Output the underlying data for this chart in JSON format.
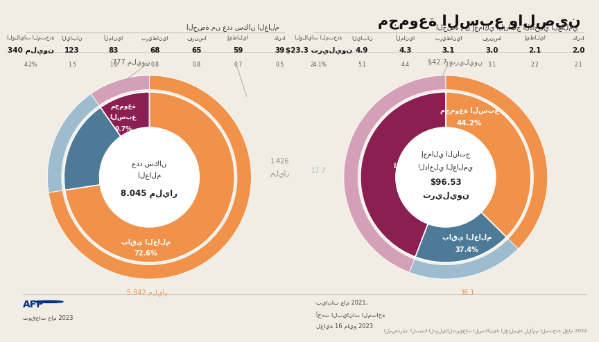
{
  "title": "مجموعة السبع والصين",
  "subtitle_left": "الحصة من عدد سكان العالم",
  "subtitle_right": "الحصة من إجمالي الناتج الداخلي العالمي",
  "background_color": "#F2EDE4",
  "pop_segments_inner": [
    72.6,
    17.7,
    9.7
  ],
  "pop_segments_inner_colors": [
    "#F0924A",
    "#4D7A96",
    "#8B1F52"
  ],
  "pop_segments_outer": [
    72.6,
    17.7,
    9.7
  ],
  "pop_segments_outer_colors": [
    "#F0924A",
    "#9DBDCE",
    "#D4A0B8"
  ],
  "gdp_segments_inner": [
    37.4,
    18.4,
    44.2
  ],
  "gdp_segments_inner_colors": [
    "#F0924A",
    "#4D7A96",
    "#8B1F52"
  ],
  "gdp_segments_outer": [
    37.4,
    18.4,
    44.2
  ],
  "gdp_segments_outer_colors": [
    "#F0924A",
    "#9DBDCE",
    "#D4A0B8"
  ],
  "pop_headers_rtl": [
    "كندا",
    "إيطاليا",
    "فرنسا",
    "بريطانيا",
    "ألمانيا",
    "اليابان",
    "الولايات المتحدة"
  ],
  "pop_vals_rtl": [
    "39",
    "59",
    "65",
    "68",
    "83",
    "123",
    "340 مليون"
  ],
  "pop_pcts_rtl": [
    "0.5",
    "0.7",
    "0.8",
    "0.8",
    "1.0",
    "1.5",
    "4.2%"
  ],
  "gdp_headers_rtl": [
    "كندا",
    "إيطاليا",
    "فرنسا",
    "بريطانيا",
    "ألمانيا",
    "اليابان",
    "الولايات المتحدة"
  ],
  "gdp_vals_rtl": [
    "2.0",
    "2.1",
    "3.0",
    "3.1",
    "4.3",
    "4.9",
    "$23.3 تريليون"
  ],
  "gdp_pcts_rtl": [
    "2.1",
    "2.2",
    "3.1",
    "3.2",
    "4.4",
    "5.1",
    "24.1%"
  ],
  "footnote_left": "توقعات عام 2023",
  "footnote_right_lines": [
    "بيانات عام 2021،",
    "أحدث البيانات المتاحة",
    "لغاية 16 مايو 2023"
  ],
  "source": "المصدران: البنك الدولي/التوقعات السكانية العالمية للأمم المتحدة لعام 2022"
}
